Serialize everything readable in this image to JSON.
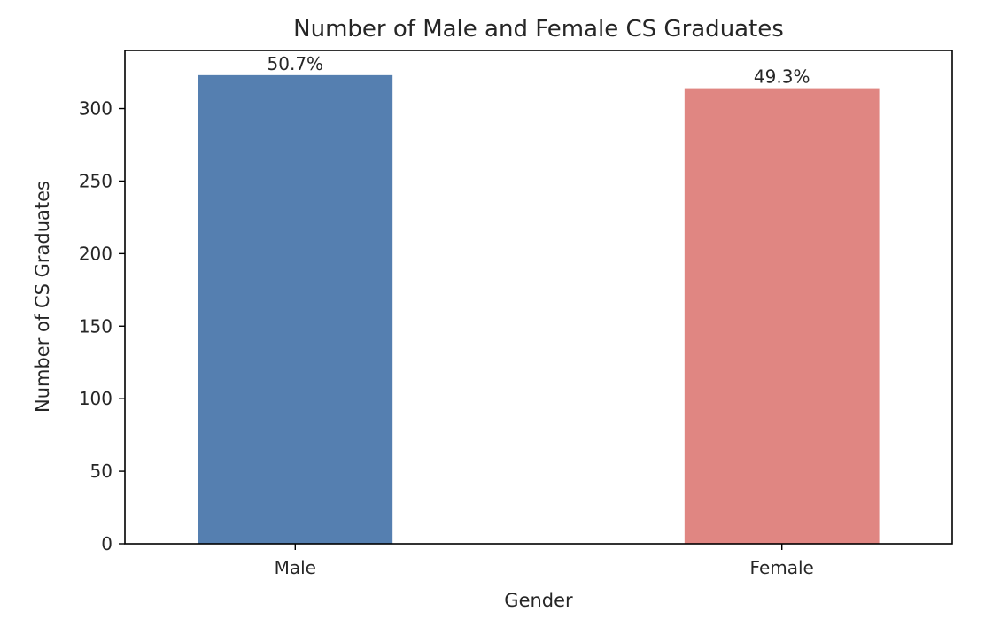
{
  "chart_data": {
    "type": "bar",
    "title": "Number of Male and Female CS Graduates",
    "xlabel": "Gender",
    "ylabel": "Number of CS Graduates",
    "categories": [
      "Male",
      "Female"
    ],
    "values": [
      323,
      314
    ],
    "bar_labels": [
      "50.7%",
      "49.3%"
    ],
    "colors": [
      "#557fb0",
      "#e08682"
    ],
    "ylim": [
      0,
      340
    ],
    "yticks": [
      0,
      50,
      100,
      150,
      200,
      250,
      300
    ],
    "ytick_labels": [
      "0",
      "50",
      "100",
      "150",
      "200",
      "250",
      "300"
    ],
    "grid": false,
    "legend": null
  }
}
